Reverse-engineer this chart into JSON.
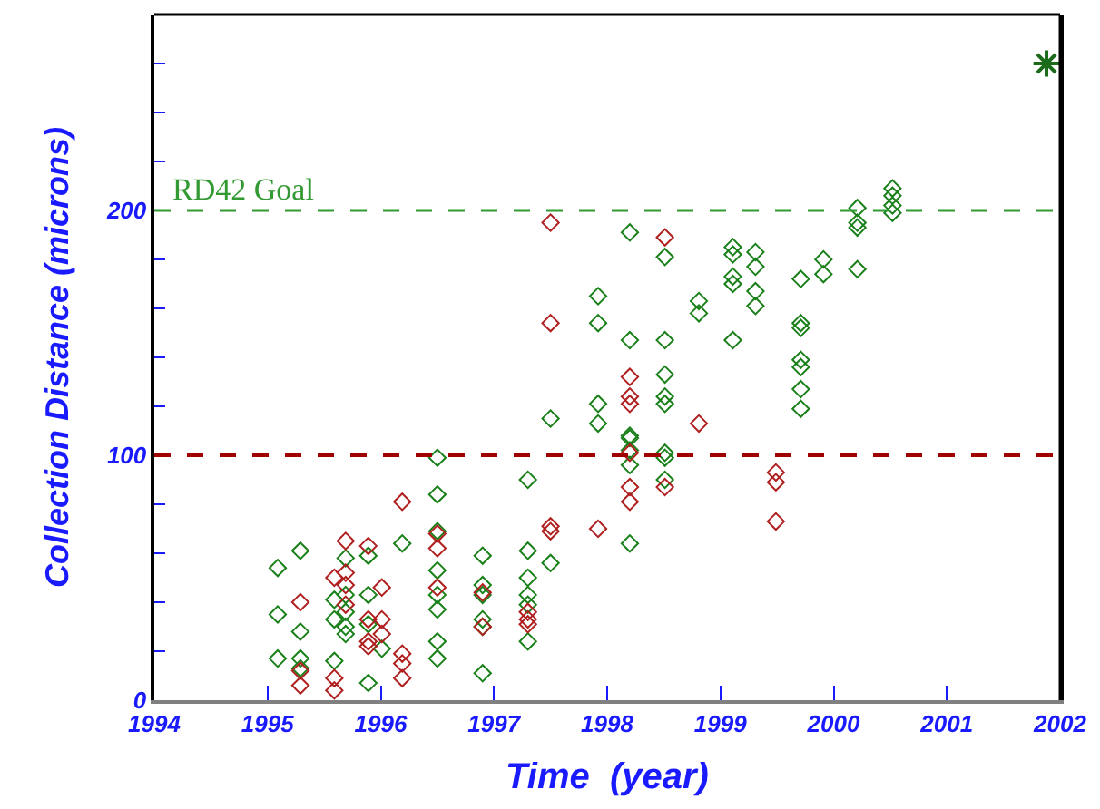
{
  "chart_data": {
    "type": "scatter",
    "xlabel": "Time  (year)",
    "ylabel": "Collection Distance (microns)",
    "xlim": [
      1994,
      2002
    ],
    "ylim": [
      0,
      280
    ],
    "xticks": [
      1994,
      1995,
      1996,
      1997,
      1998,
      1999,
      2000,
      2001,
      2002
    ],
    "yticks": [
      0,
      {
        "value": 20,
        "label": null
      },
      {
        "value": 40,
        "label": null
      },
      {
        "value": 60,
        "label": null
      },
      {
        "value": 80,
        "label": null
      },
      100,
      {
        "value": 120,
        "label": null
      },
      {
        "value": 140,
        "label": null
      },
      {
        "value": 160,
        "label": null
      },
      {
        "value": 180,
        "label": null
      },
      200,
      {
        "value": 220,
        "label": null
      },
      {
        "value": 240,
        "label": null
      },
      {
        "value": 260,
        "label": null
      }
    ],
    "marker": "diamond",
    "ref_lines": [
      {
        "axis": "y",
        "value": 100,
        "label": null,
        "color": "#a00000",
        "line_style": "dashed"
      },
      {
        "axis": "y",
        "value": 200,
        "label": "RD42 Goal",
        "color": "#339933",
        "line_style": "dashed"
      }
    ],
    "series": [
      {
        "color": "#1a801a",
        "x": [
          1995.09,
          1995.09,
          1995.09,
          1995.29,
          1995.29,
          1995.29,
          1995.29,
          1995.59,
          1995.59,
          1995.59,
          1995.69,
          1995.69,
          1995.69,
          1995.69,
          1995.69,
          1995.89,
          1995.89,
          1995.89,
          1995.89,
          1996.01,
          1996.19,
          1996.5,
          1996.5,
          1996.5,
          1996.5,
          1996.5,
          1996.5,
          1996.5,
          1996.5,
          1996.9,
          1996.9,
          1996.9,
          1996.9,
          1996.9,
          1996.9,
          1997.3,
          1997.3,
          1997.3,
          1997.3,
          1997.3,
          1997.3,
          1997.5,
          1997.5,
          1997.92,
          1997.92,
          1997.92,
          1997.92,
          1998.2,
          1998.2,
          1998.2,
          1998.2,
          1998.2,
          1998.2,
          1998.2,
          1998.51,
          1998.51,
          1998.51,
          1998.51,
          1998.51,
          1998.51,
          1998.51,
          1998.51,
          1998.81,
          1998.81,
          1999.11,
          1999.11,
          1999.11,
          1999.11,
          1999.11,
          1999.31,
          1999.31,
          1999.31,
          1999.31,
          1999.71,
          1999.71,
          1999.71,
          1999.71,
          1999.71,
          1999.71,
          1999.71,
          1999.91,
          1999.91,
          2000.21,
          2000.21,
          2000.21,
          2000.21,
          2000.52,
          2000.52,
          2000.52,
          2000.52
        ],
        "values": [
          54,
          35,
          17,
          61,
          28,
          17,
          13,
          41,
          33,
          16,
          58,
          43,
          36,
          30,
          27,
          59,
          43,
          31,
          7,
          21,
          64,
          99,
          84,
          69,
          53,
          43,
          37,
          24,
          17,
          59,
          47,
          43,
          33,
          30,
          11,
          90,
          61,
          50,
          43,
          39,
          24,
          115,
          56,
          165,
          154,
          121,
          113,
          191,
          147,
          108,
          107,
          102,
          96,
          64,
          181,
          147,
          133,
          124,
          121,
          101,
          99,
          90,
          163,
          158,
          185,
          182,
          173,
          170,
          147,
          183,
          177,
          167,
          161,
          172,
          154,
          152,
          139,
          136,
          127,
          119,
          180,
          174,
          201,
          195,
          193,
          176,
          209,
          206,
          202,
          199
        ]
      },
      {
        "color": "#b02020",
        "x": [
          1995.29,
          1995.29,
          1995.29,
          1995.59,
          1995.59,
          1995.59,
          1995.69,
          1995.69,
          1995.69,
          1995.69,
          1995.89,
          1995.89,
          1995.89,
          1995.89,
          1996.01,
          1996.01,
          1996.01,
          1996.19,
          1996.19,
          1996.19,
          1996.19,
          1996.5,
          1996.5,
          1996.5,
          1996.9,
          1996.9,
          1997.3,
          1997.3,
          1997.3,
          1997.5,
          1997.5,
          1997.5,
          1997.5,
          1997.92,
          1998.2,
          1998.2,
          1998.2,
          1998.2,
          1998.2,
          1998.2,
          1998.51,
          1998.51,
          1998.81,
          1999.49,
          1999.49,
          1999.49
        ],
        "values": [
          40,
          12,
          6,
          50,
          9,
          4,
          65,
          52,
          47,
          39,
          63,
          33,
          24,
          22,
          46,
          33,
          27,
          81,
          19,
          15,
          9,
          68,
          62,
          46,
          44,
          30,
          36,
          33,
          31,
          195,
          154,
          71,
          69,
          70,
          132,
          124,
          121,
          101,
          87,
          81,
          189,
          87,
          113,
          93,
          89,
          73
        ]
      },
      {
        "color": "#1a6b1a",
        "marker": "cross",
        "x": [
          2001.88
        ],
        "values": [
          260
        ]
      }
    ]
  }
}
